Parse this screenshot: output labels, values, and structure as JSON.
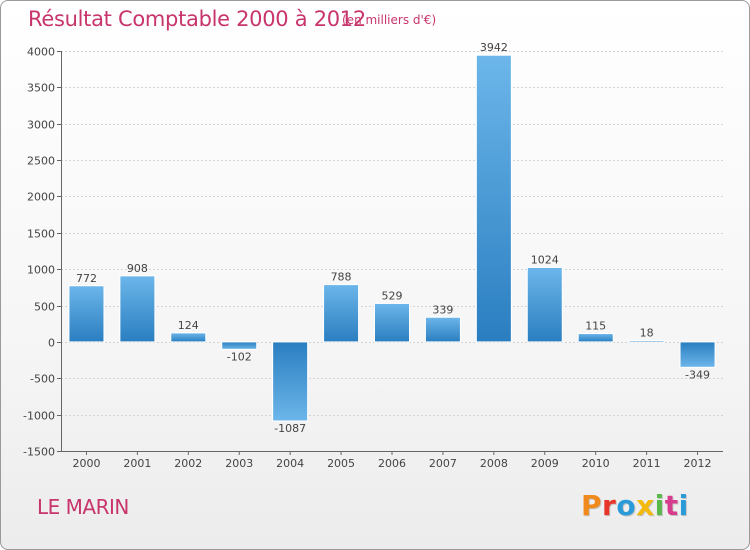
{
  "header": {
    "title": "Résultat Comptable 2000 à 2012",
    "subtitle": "(en milliers d'€)"
  },
  "footer": {
    "commune": "LE MARIN",
    "logo_text": "Proxiti",
    "logo_colors": [
      "#f08a1c",
      "#e8352a",
      "#2a9ad8",
      "#f2b90a",
      "#5ab84a",
      "#d83c8c",
      "#2a9ad8"
    ]
  },
  "colors": {
    "title": "#c8346c",
    "bar_light": "#6cb6ea",
    "bar_dark": "#2a7ec0",
    "grid": "#d4d4d4",
    "axis": "#666666"
  },
  "chart_data": {
    "type": "bar",
    "title": "Résultat Comptable 2000 à 2012",
    "xlabel": "",
    "ylabel": "",
    "ylim": [
      -1500,
      4000
    ],
    "yticks": [
      4000,
      3500,
      3000,
      2500,
      2000,
      1500,
      1000,
      500,
      0,
      -500,
      -1000,
      -1500
    ],
    "grid": true,
    "categories": [
      "2000",
      "2001",
      "2002",
      "2003",
      "2004",
      "2005",
      "2006",
      "2007",
      "2008",
      "2009",
      "2010",
      "2011",
      "2012"
    ],
    "values": [
      772,
      908,
      124,
      -102,
      -1087,
      788,
      529,
      339,
      3942,
      1024,
      115,
      18,
      -349
    ],
    "value_labels": [
      "772",
      "908",
      "124",
      "-102",
      "-1087",
      "788",
      "529",
      "339",
      "3942",
      "1024",
      "115",
      "18",
      "-349"
    ]
  }
}
